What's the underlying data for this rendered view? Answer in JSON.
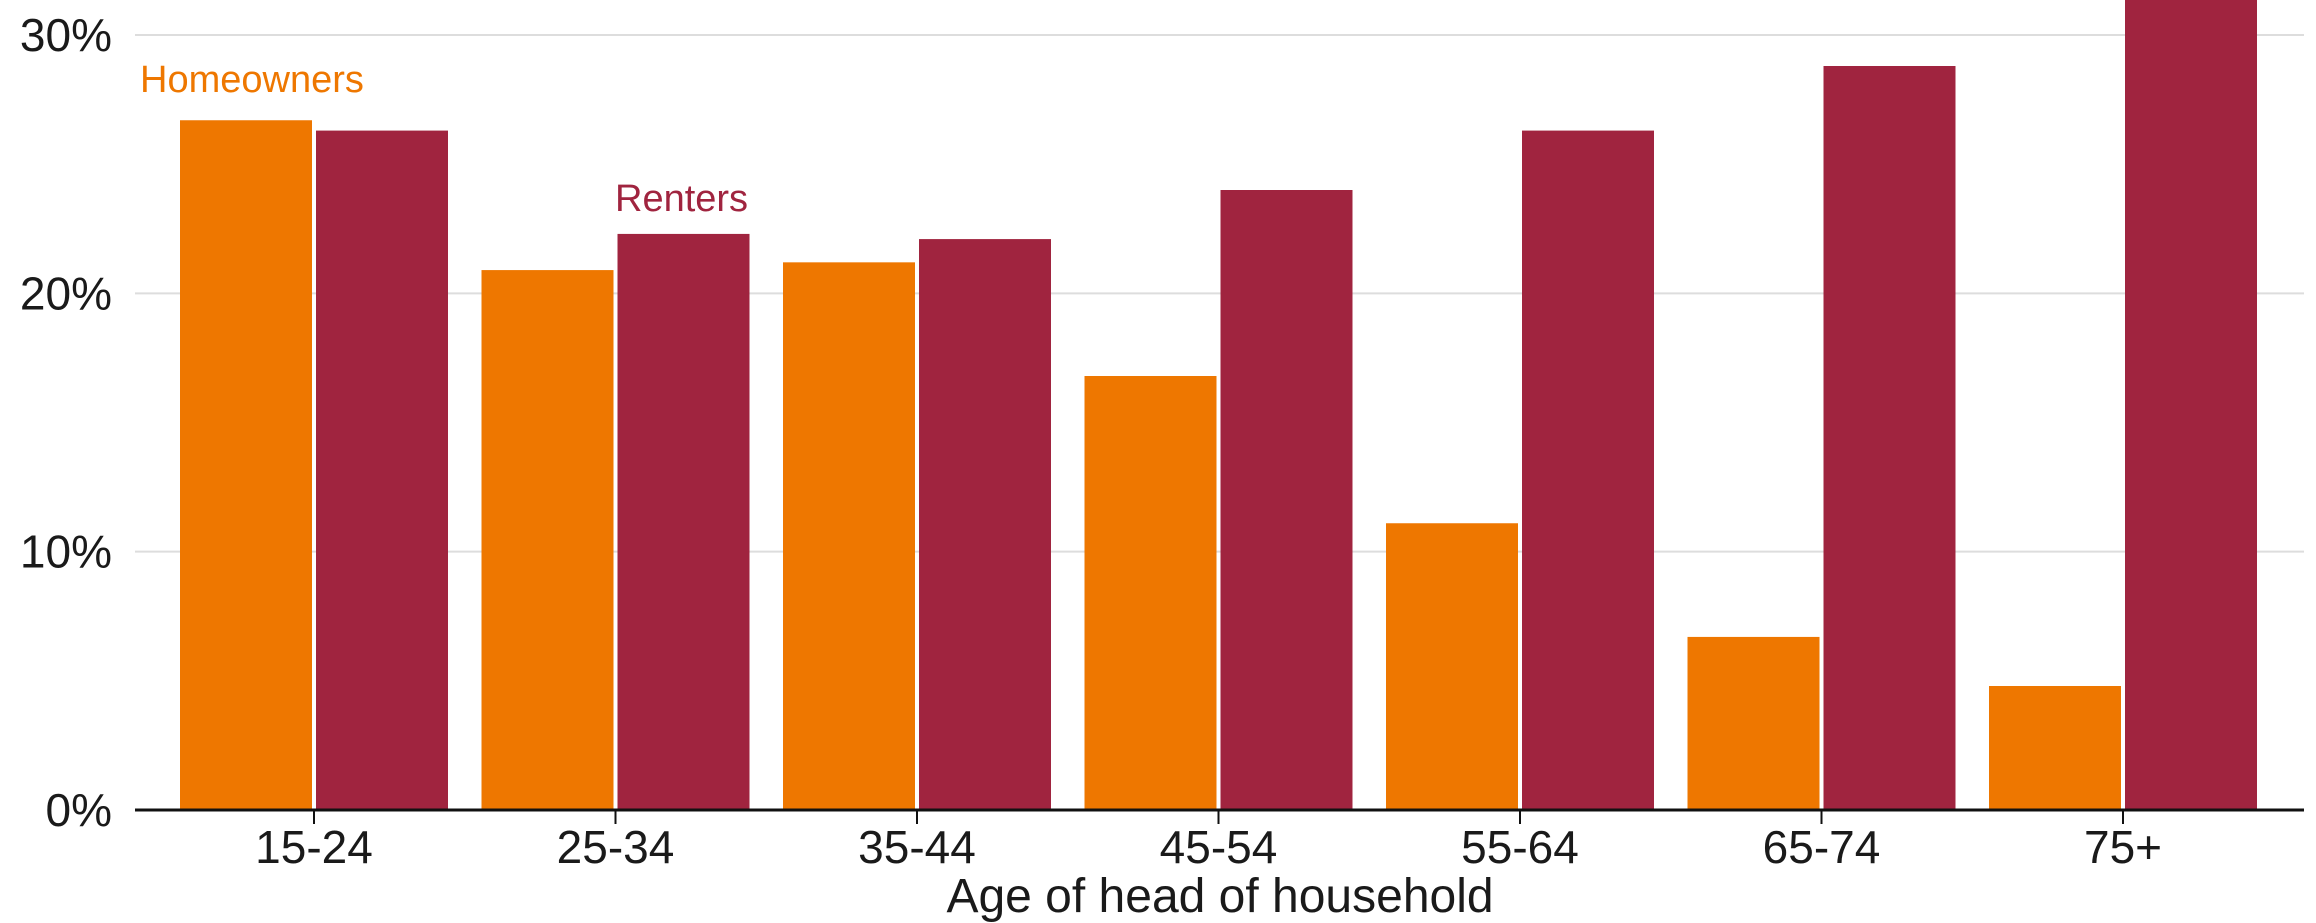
{
  "chart_data": {
    "type": "bar",
    "categories": [
      "15-24",
      "25-34",
      "35-44",
      "45-54",
      "55-64",
      "65-74",
      "75+"
    ],
    "series": [
      {
        "name": "Homeowners",
        "values": [
          26.7,
          20.9,
          21.2,
          16.8,
          11.1,
          6.7,
          4.8
        ],
        "color": "#EE7700"
      },
      {
        "name": "Renters",
        "values": [
          26.3,
          22.3,
          22.1,
          24.0,
          26.3,
          28.8,
          31.5
        ],
        "color": "#A0243F"
      }
    ],
    "title": "",
    "xlabel": "Age of head of household",
    "ylabel": "",
    "ylim": [
      0,
      30
    ],
    "yticks": [
      0,
      10,
      20,
      30
    ],
    "ytick_labels": [
      "0%",
      "10%",
      "20%",
      "30%"
    ],
    "grid": true,
    "legend": "direct labels above bars"
  }
}
